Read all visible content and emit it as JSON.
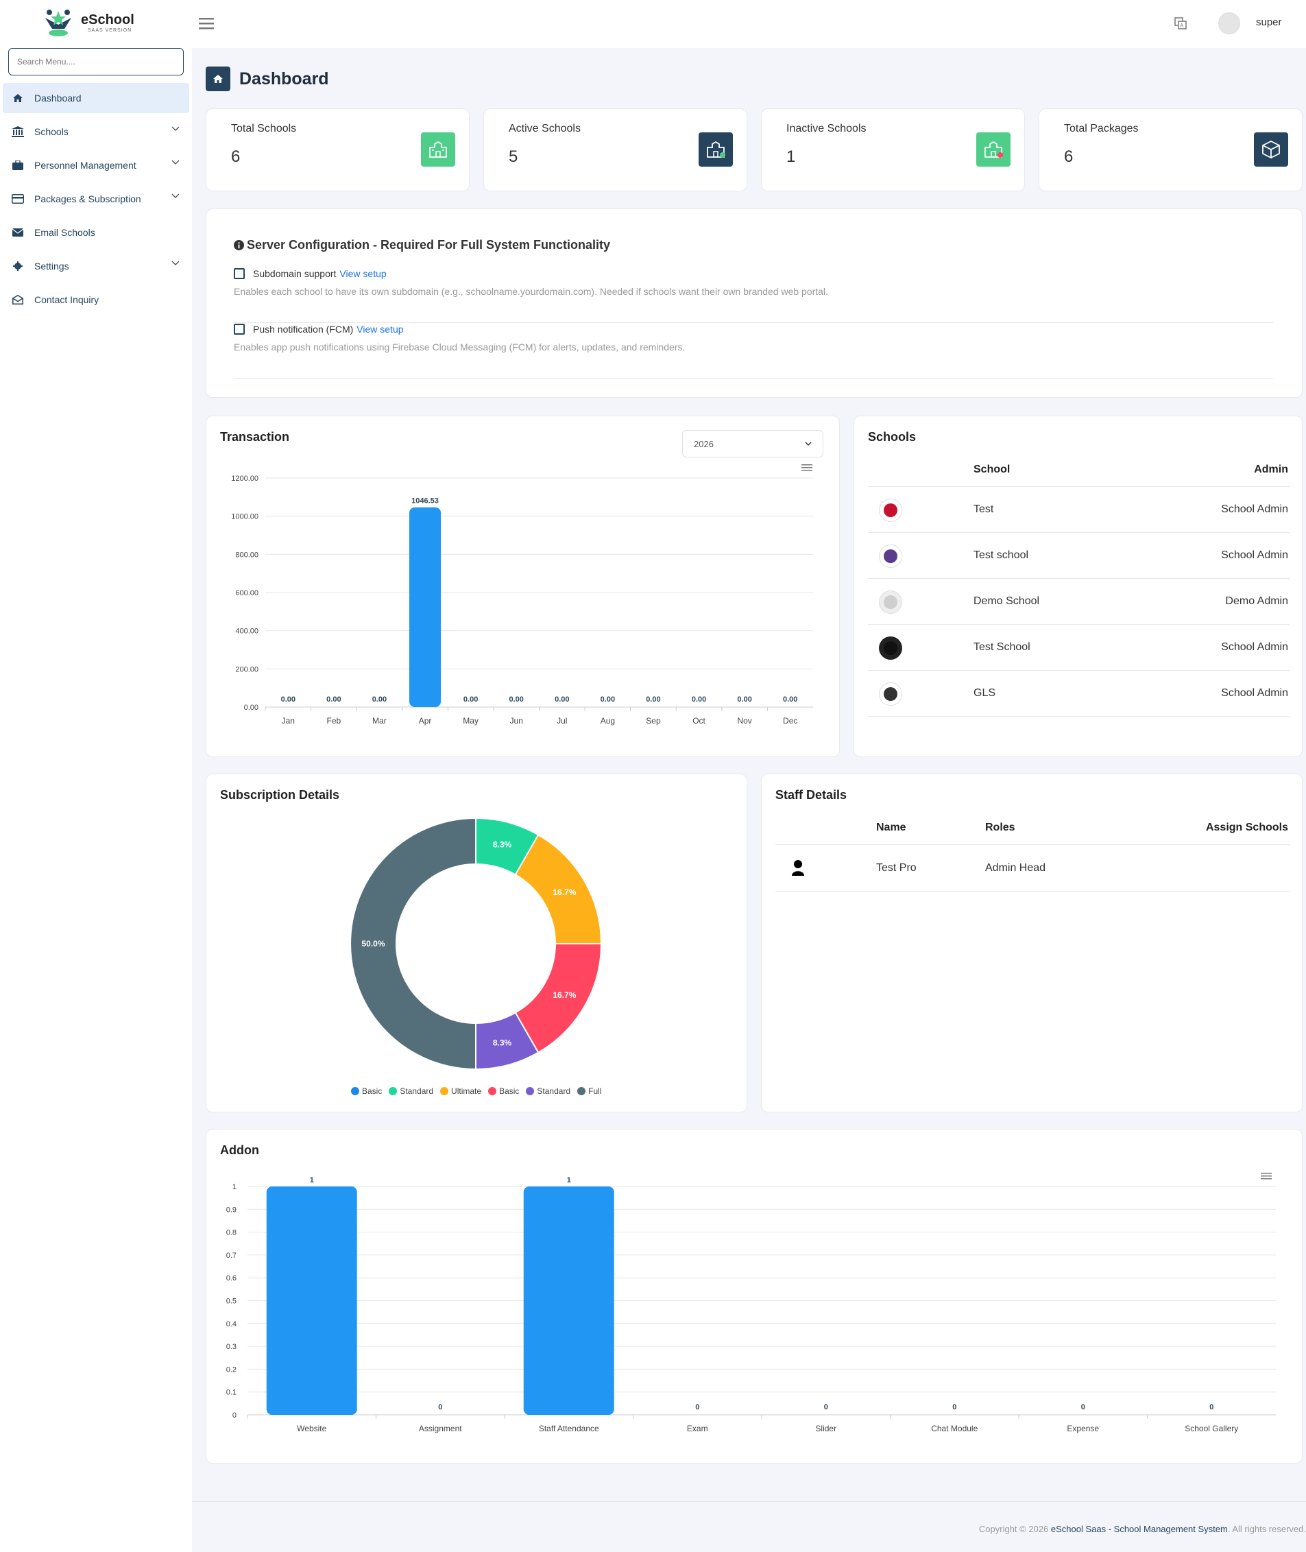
{
  "app": {
    "name": "eSchool",
    "subtitle": "SAAS VERSION",
    "search_placeholder": "Search Menu...."
  },
  "sidebar": {
    "items": [
      {
        "label": "Dashboard",
        "icon": "home-icon",
        "active": true,
        "chevron": false
      },
      {
        "label": "Schools",
        "icon": "institution-icon",
        "chevron": true
      },
      {
        "label": "Personnel Management",
        "icon": "briefcase-icon",
        "chevron": true
      },
      {
        "label": "Packages & Subscription",
        "icon": "credit-card-icon",
        "chevron": true
      },
      {
        "label": "Email Schools",
        "icon": "envelope-icon",
        "chevron": false
      },
      {
        "label": "Settings",
        "icon": "gear-icon",
        "chevron": true
      },
      {
        "label": "Contact Inquiry",
        "icon": "envelope-open-icon",
        "chevron": false
      }
    ]
  },
  "topbar": {
    "username": "super"
  },
  "page": {
    "title": "Dashboard"
  },
  "stats": [
    {
      "label": "Total Schools",
      "value": "6",
      "color": "#4fce8a"
    },
    {
      "label": "Active Schools",
      "value": "5",
      "color": "#26445e"
    },
    {
      "label": "Inactive Schools",
      "value": "1",
      "color": "#4fce8a"
    },
    {
      "label": "Total Packages",
      "value": "6",
      "color": "#26445e"
    }
  ],
  "server_config": {
    "title": "Server Configuration - Required For Full System Functionality",
    "items": [
      {
        "label": "Subdomain support",
        "link": "View setup",
        "desc": "Enables each school to have its own subdomain (e.g., schoolname.yourdomain.com). Needed if schools want their own branded web portal."
      },
      {
        "label": "Push notification (FCM)",
        "link": "View setup",
        "desc": "Enables app push notifications using Firebase Cloud Messaging (FCM) for alerts, updates, and reminders."
      }
    ]
  },
  "transaction": {
    "title": "Transaction",
    "year": "2026"
  },
  "schools_table": {
    "title": "Schools",
    "headers": {
      "school": "School",
      "admin": "Admin"
    },
    "rows": [
      {
        "school": "Test",
        "admin": "School Admin"
      },
      {
        "school": "Test school",
        "admin": "School Admin"
      },
      {
        "school": "Demo School",
        "admin": "Demo Admin"
      },
      {
        "school": "Test School",
        "admin": "School Admin"
      },
      {
        "school": "GLS",
        "admin": "School Admin"
      }
    ]
  },
  "subscription": {
    "title": "Subscription Details"
  },
  "staff": {
    "title": "Staff Details",
    "headers": {
      "name": "Name",
      "roles": "Roles",
      "assign": "Assign Schools"
    },
    "rows": [
      {
        "name": "Test Pro",
        "roles": "Admin Head"
      }
    ]
  },
  "addon": {
    "title": "Addon"
  },
  "footer": {
    "prefix": "Copyright © 2026 ",
    "brand": "eSchool Saas - School Management System",
    "suffix": ". All rights reserved."
  },
  "chart_data": [
    {
      "type": "bar",
      "name": "Transaction",
      "categories": [
        "Jan",
        "Feb",
        "Mar",
        "Apr",
        "May",
        "Jun",
        "Jul",
        "Aug",
        "Sep",
        "Oct",
        "Nov",
        "Dec"
      ],
      "values": [
        0,
        0,
        0,
        1046.53,
        0,
        0,
        0,
        0,
        0,
        0,
        0,
        0
      ],
      "value_labels": [
        "0.00",
        "0.00",
        "0.00",
        "1046.53",
        "0.00",
        "0.00",
        "0.00",
        "0.00",
        "0.00",
        "0.00",
        "0.00",
        "0.00"
      ],
      "yticks": [
        "0.00",
        "200.00",
        "400.00",
        "600.00",
        "800.00",
        "1000.00",
        "1200.00"
      ],
      "ylim": [
        0,
        1200
      ],
      "color": "#2196f3",
      "grid": true
    },
    {
      "type": "pie",
      "name": "Subscription Details",
      "donut": true,
      "labels": [
        "Basic",
        "Standard",
        "Ultimate",
        "Basic",
        "Standard",
        "Full"
      ],
      "values": [
        0,
        8.3,
        16.7,
        16.7,
        8.3,
        50.0
      ],
      "value_labels": [
        "",
        "8.3%",
        "16.7%",
        "16.7%",
        "8.3%",
        "50.0%"
      ],
      "colors": [
        "#1e88e5",
        "#1ed79b",
        "#feb019",
        "#ff4560",
        "#775dd0",
        "#546e7a"
      ],
      "legend": "bottom"
    },
    {
      "type": "bar",
      "name": "Addon",
      "categories": [
        "Website",
        "Assignment",
        "Staff Attendance",
        "Exam",
        "Slider",
        "Chat Module",
        "Expense",
        "School Gallery"
      ],
      "values": [
        1,
        0,
        1,
        0,
        0,
        0,
        0,
        0
      ],
      "value_labels": [
        "1",
        "0",
        "1",
        "0",
        "0",
        "0",
        "0",
        "0"
      ],
      "yticks": [
        "0",
        "0.1",
        "0.2",
        "0.3",
        "0.4",
        "0.5",
        "0.6",
        "0.7",
        "0.8",
        "0.9",
        "1"
      ],
      "ylim": [
        0,
        1
      ],
      "color": "#2196f3",
      "grid": true
    }
  ]
}
